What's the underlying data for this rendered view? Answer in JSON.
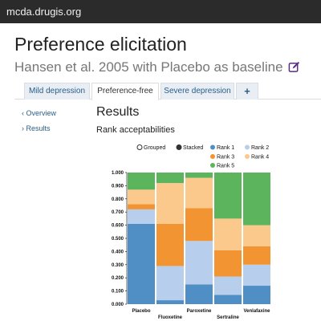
{
  "topbar": {
    "url": "mcda.drugis.org"
  },
  "header": {
    "title": "Preference elicitation",
    "subtitle": "Hansen et al. 2005 with Placebo as baseline"
  },
  "tabs": [
    {
      "label": "Mild depression",
      "active": false
    },
    {
      "label": "Preference-free",
      "active": true
    },
    {
      "label": "Severe depression",
      "active": false
    },
    {
      "label": "+",
      "active": false
    }
  ],
  "sidebar": {
    "items": [
      {
        "label": "‹ Overview"
      },
      {
        "label": "› Results"
      }
    ]
  },
  "main": {
    "section_title": "Results",
    "chart_title": "Rank acceptabilities"
  },
  "chart_controls": {
    "grouped_label": "Grouped",
    "stacked_label": "Stacked",
    "selected": "stacked"
  },
  "colors": {
    "rank1": "#4f8fc6",
    "rank2": "#b7cfec",
    "rank3": "#f29432",
    "rank4": "#fcc98d",
    "rank5": "#5cb55c"
  },
  "chart_data": {
    "type": "bar",
    "stacked": true,
    "categories": [
      "Placebo",
      "Fluoxetine",
      "Paroxetine",
      "Sertraline",
      "Venlafaxine"
    ],
    "series": [
      {
        "name": "Rank 1",
        "values": [
          0.61,
          0.03,
          0.15,
          0.07,
          0.14
        ]
      },
      {
        "name": "Rank 2",
        "values": [
          0.11,
          0.26,
          0.33,
          0.14,
          0.16
        ]
      },
      {
        "name": "Rank 3",
        "values": [
          0.04,
          0.32,
          0.25,
          0.2,
          0.14
        ]
      },
      {
        "name": "Rank 4",
        "values": [
          0.11,
          0.31,
          0.23,
          0.24,
          0.16
        ]
      },
      {
        "name": "Rank 5",
        "values": [
          0.13,
          0.08,
          0.04,
          0.35,
          0.4
        ]
      }
    ],
    "ylim": [
      0,
      1
    ],
    "yticks": [
      "0.000",
      "0.100",
      "0.200",
      "0.300",
      "0.400",
      "0.500",
      "0.600",
      "0.700",
      "0.800",
      "0.900",
      "1.000"
    ],
    "legend": "top"
  }
}
